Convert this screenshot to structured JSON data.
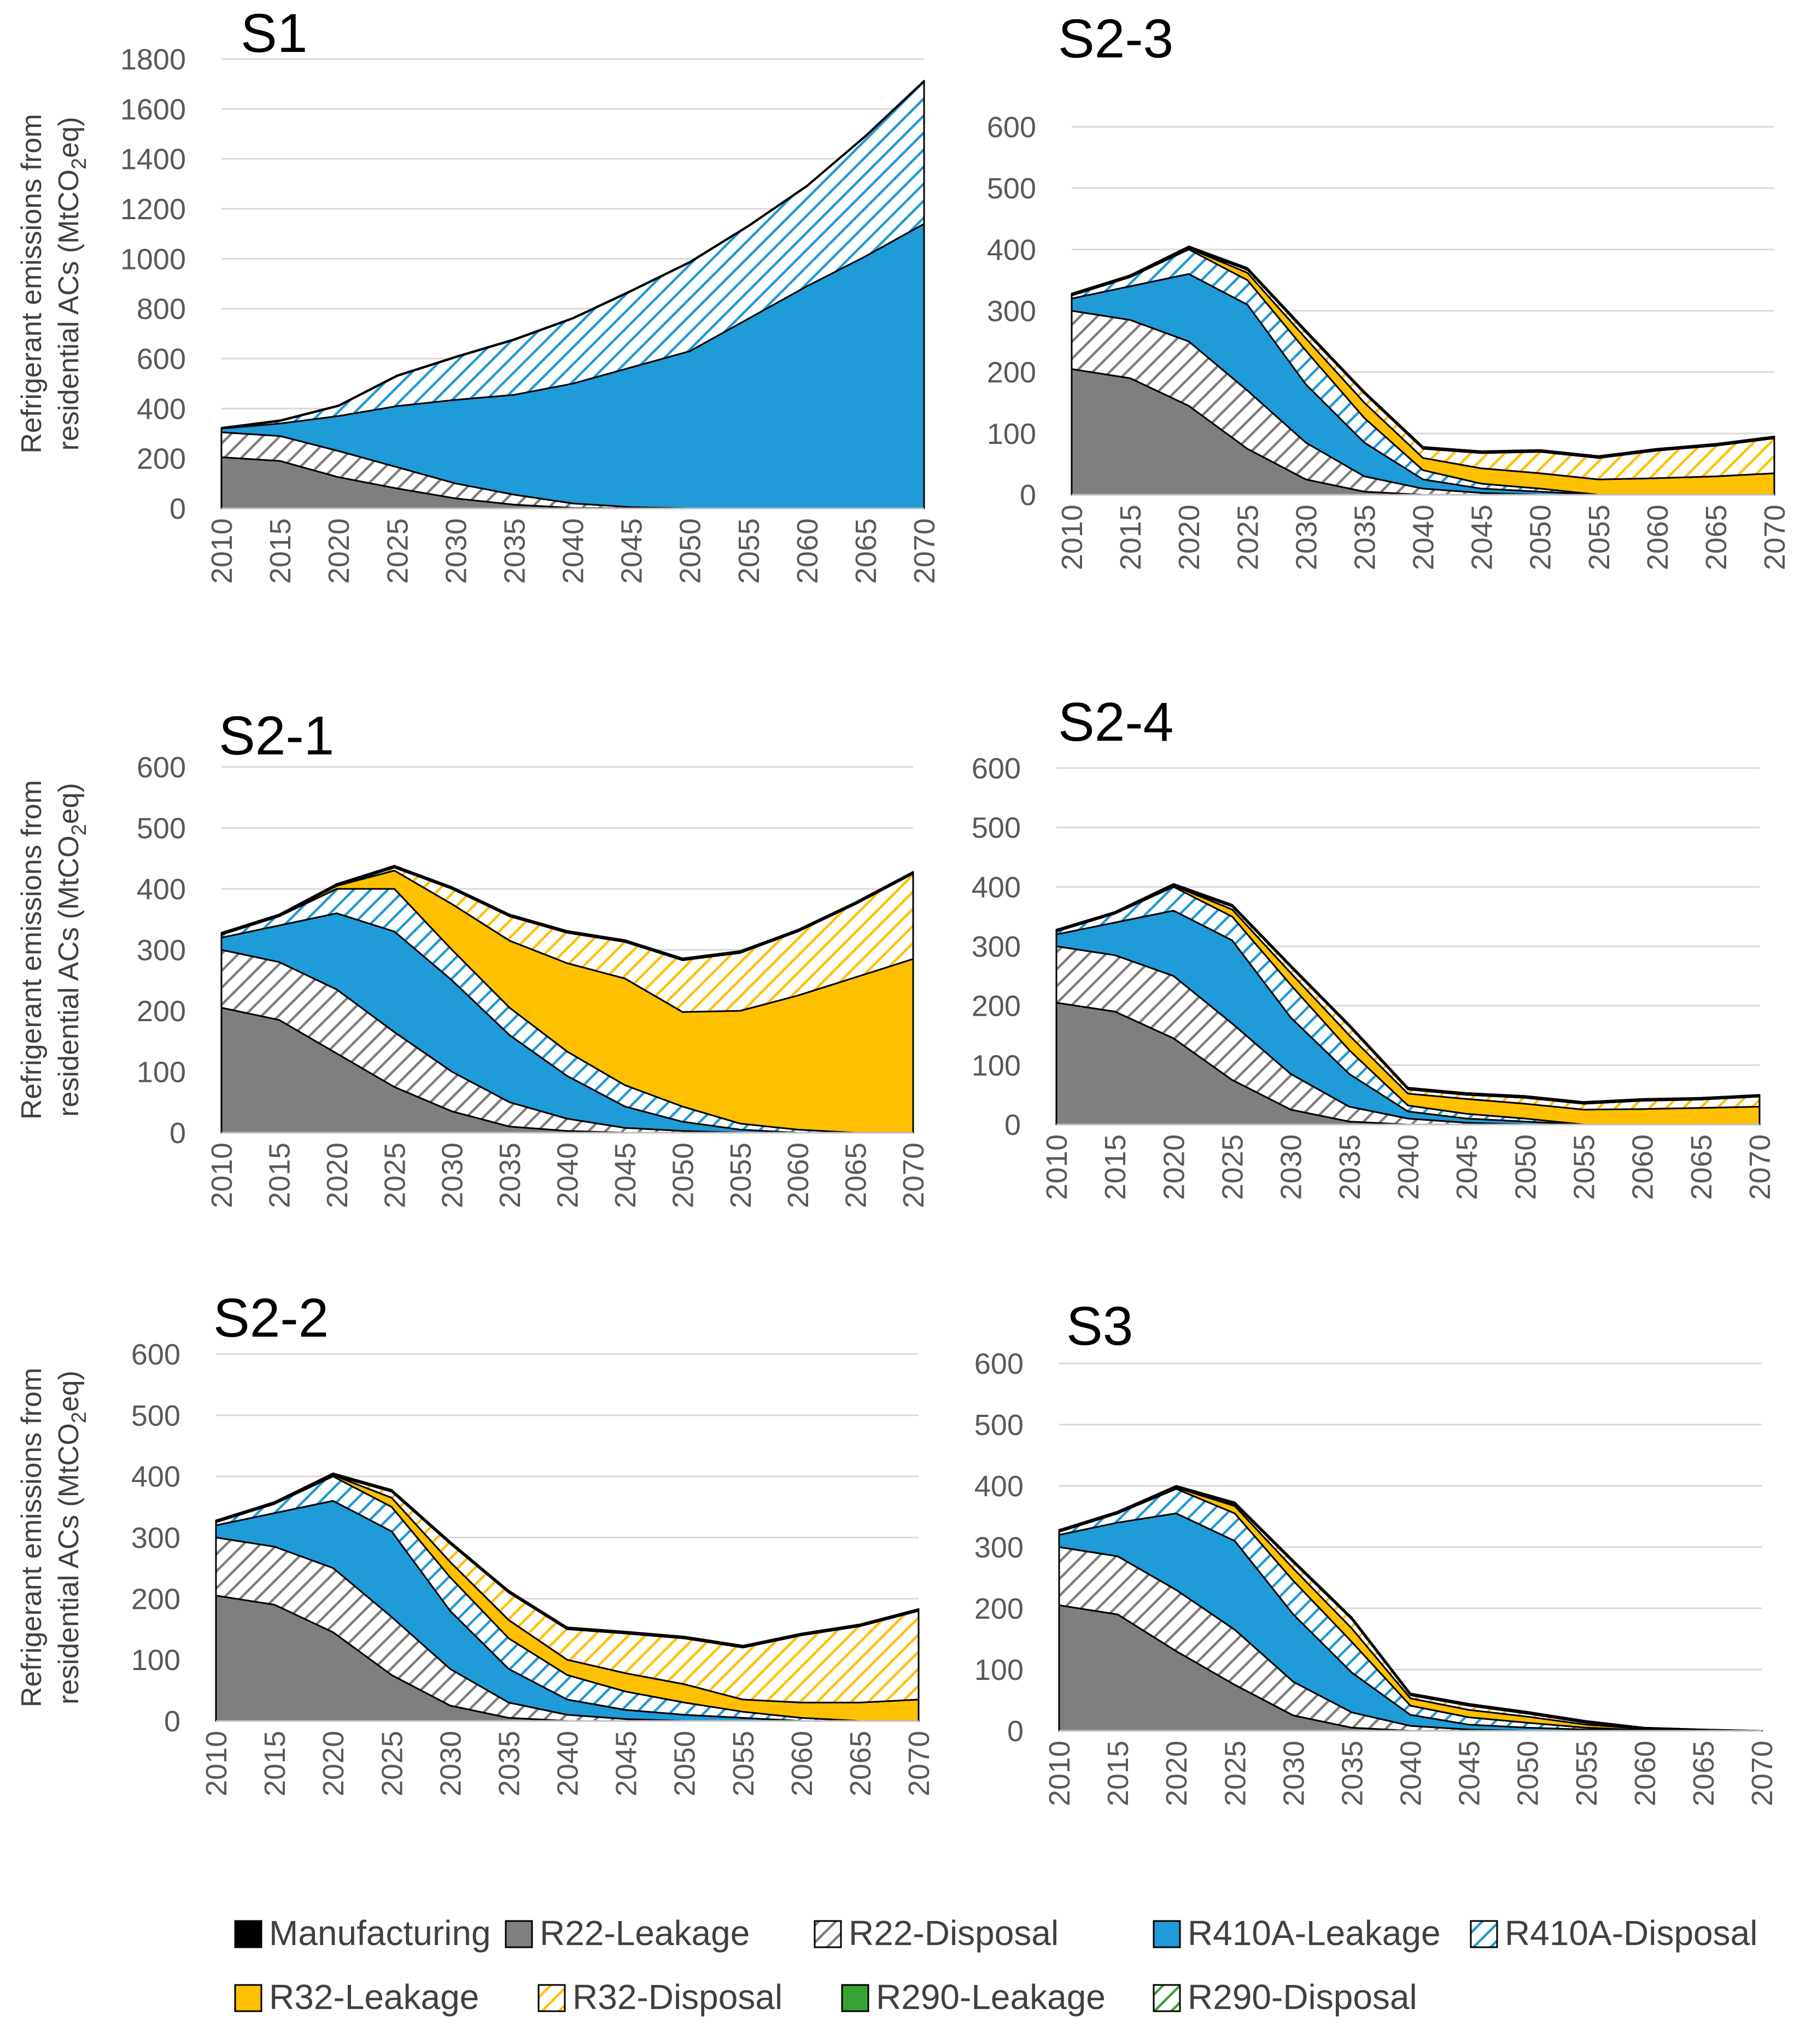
{
  "colors": {
    "manufacturing": "#000000",
    "r22": "#7f7f7f",
    "r410a": "#1f9bd7",
    "r32": "#ffc000",
    "r290": "#38a333"
  },
  "legend": [
    {
      "label": "Manufacturing",
      "fill": "solid",
      "color": "#000000"
    },
    {
      "label": "R22-Leakage",
      "fill": "solid",
      "color": "#7f7f7f"
    },
    {
      "label": "R22-Disposal",
      "fill": "hatch",
      "color": "#7f7f7f"
    },
    {
      "label": "R410A-Leakage",
      "fill": "solid",
      "color": "#1f9bd7"
    },
    {
      "label": "R410A-Disposal",
      "fill": "hatch",
      "color": "#1f9bd7"
    },
    {
      "label": "R32-Leakage",
      "fill": "solid",
      "color": "#ffc000"
    },
    {
      "label": "R32-Disposal",
      "fill": "hatch",
      "color": "#ffc000"
    },
    {
      "label": "R290-Leakage",
      "fill": "solid",
      "color": "#38a333"
    },
    {
      "label": "R290-Disposal",
      "fill": "hatch",
      "color": "#38a333"
    }
  ],
  "y_axis_label_line1": "Refrigerant  emissions from",
  "y_axis_label_line2_prefix": "residential ACs (MtCO",
  "y_axis_label_sub": "2",
  "y_axis_label_line2_suffix": "eq)",
  "chart_data": [
    {
      "type": "area",
      "stacked": true,
      "title": "S1",
      "xlabel": "",
      "ylabel": "Refrigerant  emissions from residential ACs (MtCO2eq)",
      "ylim": [
        0,
        1800
      ],
      "yticks": [
        0,
        200,
        400,
        600,
        800,
        1000,
        1200,
        1400,
        1600,
        1800
      ],
      "x": [
        2010,
        2015,
        2020,
        2025,
        2030,
        2035,
        2040,
        2045,
        2050,
        2055,
        2060,
        2065,
        2070
      ],
      "series": [
        {
          "name": "R22-Leakage",
          "values": [
            205,
            190,
            125,
            80,
            40,
            15,
            2,
            0,
            0,
            0,
            0,
            0,
            0
          ]
        },
        {
          "name": "R22-Disposal",
          "values": [
            100,
            100,
            105,
            85,
            60,
            40,
            18,
            5,
            0,
            0,
            0,
            0,
            0
          ]
        },
        {
          "name": "R410A-Leakage",
          "values": [
            15,
            50,
            140,
            245,
            335,
            400,
            480,
            560,
            630,
            760,
            890,
            1010,
            1140
          ]
        },
        {
          "name": "R410A-Disposal",
          "values": [
            0,
            10,
            40,
            120,
            170,
            220,
            260,
            305,
            355,
            370,
            400,
            480,
            570
          ]
        },
        {
          "name": "Manufacturing",
          "values": [
            3,
            3,
            3,
            3,
            3,
            3,
            3,
            3,
            3,
            3,
            3,
            3,
            3
          ]
        }
      ]
    },
    {
      "type": "area",
      "stacked": true,
      "title": "S2-3",
      "xlabel": "",
      "ylabel": "",
      "ylim": [
        0,
        600
      ],
      "yticks": [
        0,
        100,
        200,
        300,
        400,
        500,
        600
      ],
      "x": [
        2010,
        2015,
        2020,
        2025,
        2030,
        2035,
        2040,
        2045,
        2050,
        2055,
        2060,
        2065,
        2070
      ],
      "series": [
        {
          "name": "R22-Leakage",
          "values": [
            205,
            190,
            145,
            75,
            25,
            5,
            0,
            0,
            0,
            0,
            0,
            0,
            0
          ]
        },
        {
          "name": "R22-Disposal",
          "values": [
            95,
            95,
            105,
            95,
            60,
            25,
            10,
            3,
            0,
            0,
            0,
            0,
            0
          ]
        },
        {
          "name": "R410A-Leakage",
          "values": [
            20,
            55,
            110,
            140,
            95,
            55,
            15,
            7,
            5,
            0,
            0,
            0,
            0
          ]
        },
        {
          "name": "R410A-Disposal",
          "values": [
            5,
            15,
            40,
            40,
            55,
            40,
            15,
            8,
            5,
            0,
            0,
            0,
            0
          ]
        },
        {
          "name": "R32-Leakage",
          "values": [
            0,
            0,
            2,
            12,
            20,
            25,
            20,
            25,
            25,
            25,
            27,
            30,
            35
          ]
        },
        {
          "name": "R32-Disposal",
          "values": [
            0,
            0,
            0,
            5,
            10,
            15,
            15,
            25,
            35,
            35,
            45,
            50,
            57
          ]
        },
        {
          "name": "Manufacturing",
          "values": [
            3,
            3,
            3,
            3,
            3,
            3,
            3,
            3,
            3,
            3,
            3,
            3,
            3
          ]
        }
      ]
    },
    {
      "type": "area",
      "stacked": true,
      "title": "S2-1",
      "xlabel": "",
      "ylabel": "Refrigerant  emissions from residential ACs (MtCO2eq)",
      "ylim": [
        0,
        600
      ],
      "yticks": [
        0,
        100,
        200,
        300,
        400,
        500,
        600
      ],
      "x": [
        2010,
        2015,
        2020,
        2025,
        2030,
        2035,
        2040,
        2045,
        2050,
        2055,
        2060,
        2065,
        2070
      ],
      "series": [
        {
          "name": "R22-Leakage",
          "values": [
            205,
            185,
            130,
            75,
            35,
            10,
            3,
            0,
            0,
            0,
            0,
            0,
            0
          ]
        },
        {
          "name": "R22-Disposal",
          "values": [
            95,
            95,
            105,
            90,
            65,
            40,
            20,
            8,
            3,
            0,
            0,
            0,
            0
          ]
        },
        {
          "name": "R410A-Leakage",
          "values": [
            20,
            60,
            125,
            165,
            150,
            110,
            70,
            35,
            15,
            5,
            0,
            0,
            0
          ]
        },
        {
          "name": "R410A-Disposal",
          "values": [
            5,
            15,
            40,
            70,
            50,
            45,
            40,
            35,
            25,
            10,
            5,
            0,
            0
          ]
        },
        {
          "name": "R32-Leakage",
          "values": [
            0,
            0,
            5,
            30,
            75,
            110,
            145,
            175,
            155,
            185,
            220,
            255,
            285
          ]
        },
        {
          "name": "R32-Disposal",
          "values": [
            0,
            0,
            0,
            5,
            25,
            40,
            50,
            60,
            85,
            95,
            105,
            120,
            140
          ]
        },
        {
          "name": "Manufacturing",
          "values": [
            3,
            3,
            3,
            3,
            3,
            3,
            3,
            3,
            3,
            3,
            3,
            3,
            3
          ]
        }
      ]
    },
    {
      "type": "area",
      "stacked": true,
      "title": "S2-4",
      "xlabel": "",
      "ylabel": "",
      "ylim": [
        0,
        600
      ],
      "yticks": [
        0,
        100,
        200,
        300,
        400,
        500,
        600
      ],
      "x": [
        2010,
        2015,
        2020,
        2025,
        2030,
        2035,
        2040,
        2045,
        2050,
        2055,
        2060,
        2065,
        2070
      ],
      "series": [
        {
          "name": "R22-Leakage",
          "values": [
            205,
            190,
            145,
            75,
            25,
            5,
            0,
            0,
            0,
            0,
            0,
            0,
            0
          ]
        },
        {
          "name": "R22-Disposal",
          "values": [
            95,
            95,
            105,
            95,
            60,
            25,
            10,
            3,
            0,
            0,
            0,
            0,
            0
          ]
        },
        {
          "name": "R410A-Leakage",
          "values": [
            20,
            55,
            110,
            140,
            95,
            55,
            12,
            7,
            5,
            0,
            0,
            0,
            0
          ]
        },
        {
          "name": "R410A-Disposal",
          "values": [
            5,
            15,
            40,
            40,
            55,
            40,
            10,
            8,
            5,
            0,
            0,
            0,
            0
          ]
        },
        {
          "name": "R32-Leakage",
          "values": [
            0,
            0,
            2,
            12,
            20,
            25,
            20,
            25,
            25,
            25,
            26,
            28,
            30
          ]
        },
        {
          "name": "R32-Disposal",
          "values": [
            0,
            0,
            0,
            5,
            10,
            15,
            7,
            7,
            10,
            10,
            14,
            14,
            17
          ]
        },
        {
          "name": "Manufacturing",
          "values": [
            3,
            3,
            3,
            3,
            3,
            3,
            3,
            3,
            3,
            3,
            3,
            3,
            3
          ]
        }
      ]
    },
    {
      "type": "area",
      "stacked": true,
      "title": "S2-2",
      "xlabel": "",
      "ylabel": "Refrigerant  emissions from residential ACs (MtCO2eq)",
      "ylim": [
        0,
        600
      ],
      "yticks": [
        0,
        100,
        200,
        300,
        400,
        500,
        600
      ],
      "x": [
        2010,
        2015,
        2020,
        2025,
        2030,
        2035,
        2040,
        2045,
        2050,
        2055,
        2060,
        2065,
        2070
      ],
      "series": [
        {
          "name": "R22-Leakage",
          "values": [
            205,
            190,
            145,
            75,
            25,
            5,
            0,
            0,
            0,
            0,
            0,
            0,
            0
          ]
        },
        {
          "name": "R22-Disposal",
          "values": [
            95,
            95,
            105,
            95,
            60,
            25,
            10,
            3,
            0,
            0,
            0,
            0,
            0
          ]
        },
        {
          "name": "R410A-Leakage",
          "values": [
            20,
            55,
            110,
            140,
            95,
            55,
            25,
            15,
            10,
            5,
            0,
            0,
            0
          ]
        },
        {
          "name": "R410A-Disposal",
          "values": [
            5,
            15,
            40,
            40,
            55,
            50,
            40,
            30,
            20,
            10,
            5,
            0,
            0
          ]
        },
        {
          "name": "R32-Leakage",
          "values": [
            0,
            0,
            2,
            15,
            25,
            30,
            25,
            30,
            30,
            20,
            25,
            30,
            35
          ]
        },
        {
          "name": "R32-Disposal",
          "values": [
            0,
            0,
            0,
            10,
            30,
            45,
            50,
            65,
            75,
            85,
            110,
            125,
            145
          ]
        },
        {
          "name": "Manufacturing",
          "values": [
            3,
            3,
            3,
            3,
            3,
            3,
            3,
            3,
            3,
            3,
            3,
            3,
            3
          ]
        }
      ]
    },
    {
      "type": "area",
      "stacked": true,
      "title": "S3",
      "xlabel": "",
      "ylabel": "",
      "ylim": [
        0,
        600
      ],
      "yticks": [
        0,
        100,
        200,
        300,
        400,
        500,
        600
      ],
      "x": [
        2010,
        2015,
        2020,
        2025,
        2030,
        2035,
        2040,
        2045,
        2050,
        2055,
        2060,
        2065,
        2070
      ],
      "series": [
        {
          "name": "R22-Leakage",
          "values": [
            205,
            190,
            130,
            75,
            25,
            5,
            0,
            0,
            0,
            0,
            0,
            0,
            0
          ]
        },
        {
          "name": "R22-Disposal",
          "values": [
            95,
            95,
            100,
            90,
            55,
            25,
            8,
            2,
            0,
            0,
            0,
            0,
            0
          ]
        },
        {
          "name": "R410A-Leakage",
          "values": [
            20,
            55,
            125,
            145,
            110,
            65,
            18,
            8,
            5,
            2,
            0,
            0,
            0
          ]
        },
        {
          "name": "R410A-Disposal",
          "values": [
            5,
            15,
            40,
            45,
            55,
            50,
            15,
            12,
            8,
            3,
            1,
            0,
            0
          ]
        },
        {
          "name": "R32-Leakage",
          "values": [
            0,
            0,
            2,
            12,
            20,
            22,
            12,
            12,
            10,
            5,
            2,
            1,
            0
          ]
        },
        {
          "name": "R32-Disposal",
          "values": [
            0,
            0,
            0,
            3,
            10,
            15,
            5,
            7,
            5,
            3,
            2,
            1,
            0
          ]
        },
        {
          "name": "Manufacturing",
          "values": [
            3,
            3,
            3,
            3,
            3,
            3,
            3,
            3,
            3,
            3,
            0,
            0,
            0
          ]
        }
      ]
    }
  ]
}
